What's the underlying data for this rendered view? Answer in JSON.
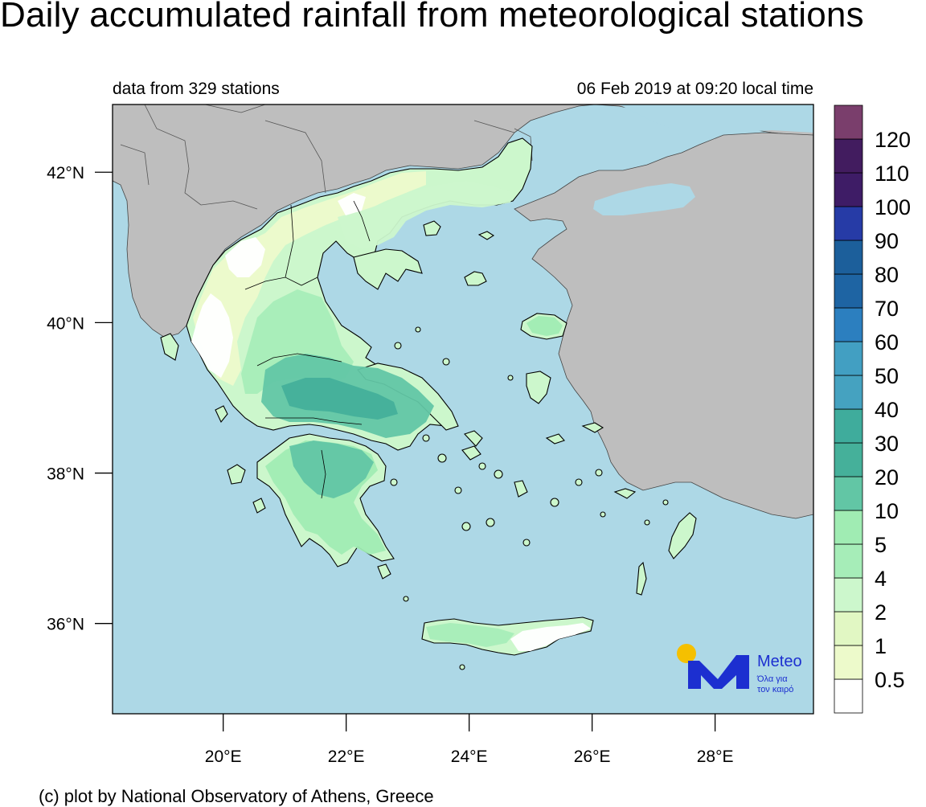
{
  "title": "Daily accumulated rainfall from meteorological stations",
  "subtitle_left": "data from 329 stations",
  "subtitle_right": "06 Feb 2019 at 09:20 local time",
  "footer": "(c) plot by National Observatory of Athens, Greece",
  "map": {
    "lon_range": [
      18.2,
      29.6
    ],
    "lat_range": [
      34.8,
      42.9
    ],
    "lon_ticks": [
      {
        "value": 20,
        "label": "20°E"
      },
      {
        "value": 22,
        "label": "22°E"
      },
      {
        "value": 24,
        "label": "24°E"
      },
      {
        "value": 26,
        "label": "26°E"
      },
      {
        "value": 28,
        "label": "28°E"
      }
    ],
    "lat_ticks": [
      {
        "value": 42,
        "label": "42°N"
      },
      {
        "value": 40,
        "label": "40°N"
      },
      {
        "value": 38,
        "label": "38°N"
      },
      {
        "value": 36,
        "label": "36°N"
      }
    ],
    "colors": {
      "sea": "#add8e6",
      "land_other": "#bebebe",
      "border": "#000000"
    }
  },
  "legend": {
    "labels": [
      "0.5",
      "1",
      "2",
      "4",
      "5",
      "10",
      "20",
      "30",
      "40",
      "50",
      "60",
      "70",
      "80",
      "90",
      "100",
      "110",
      "120"
    ],
    "colors": [
      "#ffffff",
      "#edfacb",
      "#e1f7c3",
      "#ccf7cc",
      "#a6edb8",
      "#a0ecb3",
      "#62c6a5",
      "#45b09a",
      "#3fac9c",
      "#45a2c0",
      "#429fc2",
      "#2c7fbf",
      "#1e64a3",
      "#1c5f9b",
      "#263ba6",
      "#3e1c66",
      "#421c5f",
      "#7a3e6c"
    ]
  },
  "logo": {
    "name": "Meteo",
    "tagline_1": "Όλα για",
    "tagline_2": "τον καιρό",
    "sun_color": "#f5c000",
    "mark_color": "#1c2fd0"
  }
}
